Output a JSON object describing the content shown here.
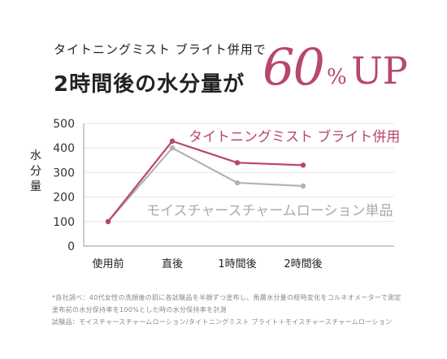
{
  "header": {
    "subtitle": "タイトニングミスト ブライト併用で",
    "title_prefix": "2時間後の水分量が",
    "highlight_number": "60",
    "highlight_percent": "%",
    "highlight_up": "UP",
    "accent_color": "#b8476b"
  },
  "chart_data": {
    "type": "line",
    "ylabel": "水分量",
    "categories": [
      "使用前",
      "直後",
      "1時間後",
      "2時間後"
    ],
    "ylim": [
      0,
      500
    ],
    "yticks": [
      0,
      100,
      200,
      300,
      400,
      500
    ],
    "grid": true,
    "series": [
      {
        "name": "タイトニングミスト ブライト併用",
        "values": [
          100,
          428,
          340,
          330
        ],
        "color": "#b8476b"
      },
      {
        "name": "モイスチャースチャームローション単品",
        "values": [
          100,
          400,
          258,
          245
        ],
        "color": "#b3b3b3"
      }
    ]
  },
  "footnotes": [
    "*自社調べ：40代女性の洗顔後の肌に各試験品を半顔ずつ塗布し、角層水分量の経時変化をコルネオメーターで測定",
    "塗布前の水分保持率を100%とした時の水分保持率を計測",
    "試験品：モイスチャースチャームローション/タイトニングミスト ブライト＋モイスチャースチャームローション"
  ]
}
